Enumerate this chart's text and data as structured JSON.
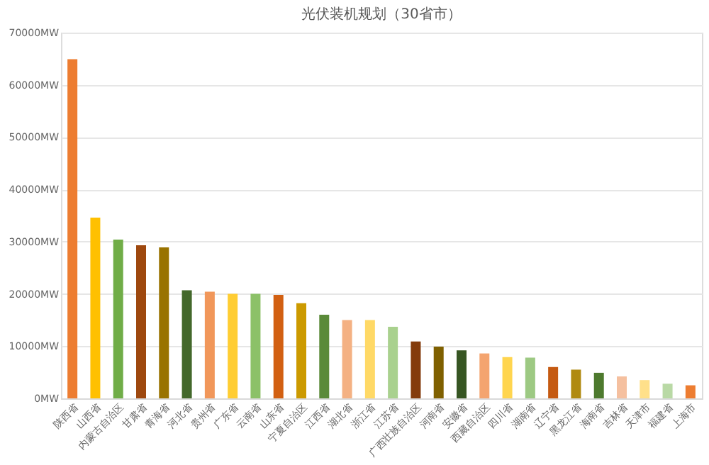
{
  "chart_data": {
    "type": "bar",
    "title": "光伏装机规划（30省市）",
    "categories": [
      "陕西省",
      "山西省",
      "内蒙古自治区",
      "甘肃省",
      "青海省",
      "河北省",
      "贵州省",
      "广东省",
      "云南省",
      "山东省",
      "宁夏自治区",
      "江西省",
      "湖北省",
      "浙江省",
      "江苏省",
      "广西壮族自治区",
      "河南省",
      "安徽省",
      "西藏自治区",
      "四川省",
      "湖南省",
      "辽宁省",
      "黑龙江省",
      "海南省",
      "吉林省",
      "天津市",
      "福建省",
      "上海市"
    ],
    "values": [
      64900,
      34600,
      30400,
      29300,
      28900,
      20700,
      20400,
      20000,
      20000,
      19800,
      18200,
      16000,
      15000,
      15000,
      13700,
      10900,
      9900,
      9200,
      8600,
      7900,
      7800,
      6000,
      5500,
      4900,
      4200,
      3500,
      2800,
      2500
    ],
    "colors": [
      "#ed7d31",
      "#ffc000",
      "#70ad47",
      "#9e480e",
      "#997300",
      "#43682b",
      "#f1975a",
      "#ffcd33",
      "#8cc168",
      "#d26012",
      "#cc9a00",
      "#5a8a39",
      "#f4b183",
      "#ffd966",
      "#a9d18e",
      "#843c0c",
      "#7f6000",
      "#375623",
      "#f4a46f",
      "#ffd54f",
      "#9dc983",
      "#c55a11",
      "#b08a10",
      "#4e7a2e",
      "#f5c09f",
      "#ffe08a",
      "#b9d9a5",
      "#ed7d31"
    ],
    "ylim": [
      0,
      70000
    ],
    "yticks": [
      {
        "value": 0,
        "label": "0MW"
      },
      {
        "value": 10000,
        "label": "10000MW"
      },
      {
        "value": 20000,
        "label": "20000MW"
      },
      {
        "value": 30000,
        "label": "30000MW"
      },
      {
        "value": 40000,
        "label": "40000MW"
      },
      {
        "value": 50000,
        "label": "50000MW"
      },
      {
        "value": 60000,
        "label": "60000MW"
      },
      {
        "value": 70000,
        "label": "70000MW"
      }
    ],
    "grid": "y"
  }
}
